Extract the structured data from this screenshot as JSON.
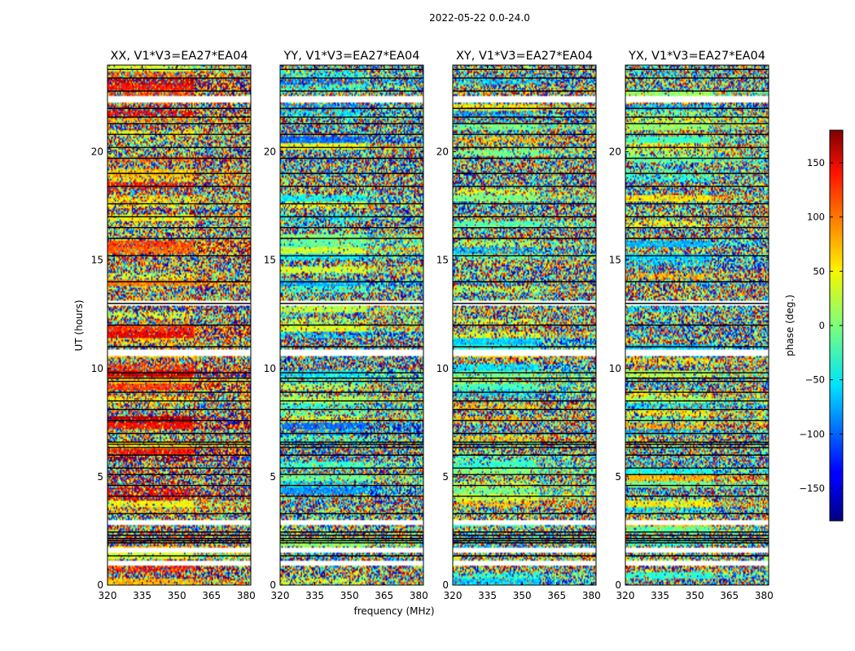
{
  "figure": {
    "suptitle": "2022-05-22 0.0-24.0"
  },
  "chart_data": {
    "type": "heatmap",
    "title": "2022-05-22 0.0-24.0",
    "xlabel": "frequency (MHz)",
    "ylabel": "UT (hours)",
    "xlim": [
      320,
      382
    ],
    "ylim": [
      0,
      24
    ],
    "x_ticks": [
      320,
      335,
      350,
      365,
      380
    ],
    "y_ticks": [
      0,
      5,
      10,
      15,
      20
    ],
    "colormap": "jet",
    "colorbar": {
      "label": "phase (deg.)",
      "range": [
        -180,
        180
      ],
      "ticks": [
        -150,
        -100,
        -50,
        0,
        50,
        100,
        150
      ]
    },
    "panels": [
      {
        "title": "XX, V1*V3=EA27*EA04"
      },
      {
        "title": "YY, V1*V3=EA27*EA04"
      },
      {
        "title": "XY, V1*V3=EA27*EA04"
      },
      {
        "title": "YX, V1*V3=EA27*EA04"
      }
    ],
    "flagged_ut_ranges_hours": [
      [
        0.9,
        1.1
      ],
      [
        1.5,
        1.7
      ],
      [
        2.8,
        3.0
      ],
      [
        10.6,
        10.9
      ],
      [
        12.9,
        13.1
      ],
      [
        22.3,
        22.6
      ]
    ],
    "scan_boundaries_hours": [
      1.35,
      1.95,
      2.05,
      2.15,
      2.3,
      2.45,
      3.3,
      4.1,
      4.6,
      5.1,
      5.4,
      6.0,
      6.35,
      6.5,
      6.6,
      7.0,
      7.6,
      8.1,
      8.5,
      8.9,
      9.4,
      9.55,
      9.8,
      11.0,
      12.0,
      13.0,
      14.0,
      15.2,
      16.0,
      16.5,
      17.0,
      17.6,
      18.4,
      19.0,
      19.7,
      20.2,
      20.8,
      21.3,
      21.6,
      22.0,
      22.8,
      23.4,
      23.8
    ]
  }
}
